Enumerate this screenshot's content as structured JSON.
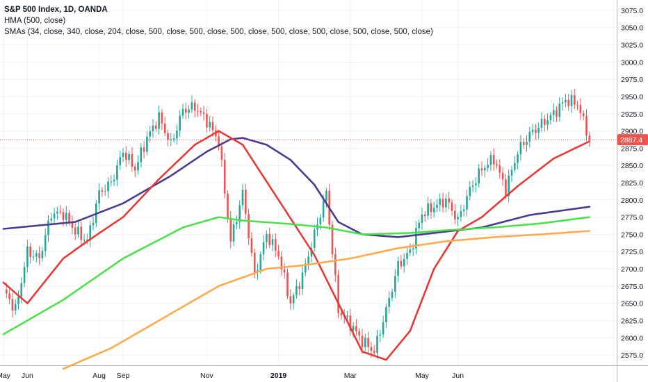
{
  "legend": {
    "title": "S&P 500 Index, 1D, OANDA",
    "line2": "HMA (500, close)",
    "line3": "SMAs (34, close, 340, close, 204, close, 500, close, 500, close, 500, close, 500, close, 500, close, 500, close, 500, close)"
  },
  "colors": {
    "up": "#26a69a",
    "down": "#ef5350",
    "hma": "#4a3b8f",
    "sma34": "#e53935",
    "sma204": "#4ce04a",
    "sma340": "#ffa94d",
    "price_line": "#ef5350",
    "price_tag": "#ef5350"
  },
  "chart_data": {
    "type": "candlestick",
    "x_ticks": [
      "May",
      "Jun",
      "Aug",
      "Sep",
      "Nov",
      "2019",
      "Mar",
      "May",
      "Jun"
    ],
    "x_tick_days": [
      0,
      2,
      8,
      10,
      17,
      23,
      29,
      35,
      38
    ],
    "y_ticks": [
      2575,
      2600,
      2625,
      2650,
      2675,
      2700,
      2725,
      2750,
      2775,
      2800,
      2825,
      2850,
      2875,
      2900,
      2925,
      2950,
      2975,
      3000,
      3025,
      3050,
      3075
    ],
    "y_tick_labels": [
      "2575.0",
      "2600.0",
      "2625.0",
      "2650.0",
      "2675.0",
      "2700.0",
      "2725.0",
      "2750.0",
      "2775.0",
      "2800.0",
      "2825.0",
      "2850.0",
      "2875.0",
      "2900.0",
      "2925.0",
      "2950.0",
      "2975.0",
      "3000.0",
      "3025.0",
      "3050.0",
      "3075.0"
    ],
    "ylim": [
      2560,
      3090
    ],
    "last_price": 2887.4,
    "last_price_label": "2887.4",
    "close_series": [
      [
        0,
        2670
      ],
      [
        1,
        2640
      ],
      [
        2,
        2725
      ],
      [
        3,
        2715
      ],
      [
        4,
        2780
      ],
      [
        5,
        2780
      ],
      [
        6,
        2755
      ],
      [
        7,
        2740
      ],
      [
        8,
        2810
      ],
      [
        9,
        2825
      ],
      [
        10,
        2870
      ],
      [
        11,
        2845
      ],
      [
        12,
        2890
      ],
      [
        13,
        2920
      ],
      [
        14,
        2880
      ],
      [
        15,
        2930
      ],
      [
        16,
        2935
      ],
      [
        17,
        2915
      ],
      [
        18,
        2885
      ],
      [
        19,
        2740
      ],
      [
        20,
        2810
      ],
      [
        21,
        2690
      ],
      [
        22,
        2750
      ],
      [
        23,
        2720
      ],
      [
        24,
        2650
      ],
      [
        25,
        2690
      ],
      [
        26,
        2750
      ],
      [
        27,
        2810
      ],
      [
        28,
        2640
      ],
      [
        29,
        2620
      ],
      [
        30,
        2595
      ],
      [
        31,
        2580
      ],
      [
        32,
        2640
      ],
      [
        33,
        2705
      ],
      [
        34,
        2725
      ],
      [
        35,
        2780
      ],
      [
        36,
        2790
      ],
      [
        37,
        2800
      ],
      [
        38,
        2770
      ],
      [
        39,
        2815
      ],
      [
        40,
        2845
      ],
      [
        41,
        2860
      ],
      [
        42,
        2815
      ],
      [
        43,
        2870
      ],
      [
        44,
        2895
      ],
      [
        45,
        2910
      ],
      [
        46,
        2925
      ],
      [
        47,
        2945
      ],
      [
        48,
        2940
      ],
      [
        49,
        2887.4
      ]
    ],
    "series": [
      {
        "name": "HMA (500, close)",
        "points": [
          [
            0,
            2758
          ],
          [
            6,
            2768
          ],
          [
            10,
            2795
          ],
          [
            14,
            2835
          ],
          [
            17,
            2870
          ],
          [
            19,
            2888
          ],
          [
            20,
            2890
          ],
          [
            22,
            2880
          ],
          [
            24,
            2858
          ],
          [
            26,
            2822
          ],
          [
            28,
            2768
          ],
          [
            30,
            2750
          ],
          [
            33,
            2746
          ],
          [
            36,
            2752
          ],
          [
            40,
            2760
          ],
          [
            44,
            2778
          ],
          [
            49,
            2790
          ]
        ]
      },
      {
        "name": "SMA 34",
        "points": [
          [
            0,
            2680
          ],
          [
            2,
            2650
          ],
          [
            5,
            2715
          ],
          [
            7,
            2740
          ],
          [
            10,
            2775
          ],
          [
            13,
            2830
          ],
          [
            16,
            2880
          ],
          [
            18,
            2900
          ],
          [
            20,
            2880
          ],
          [
            23,
            2800
          ],
          [
            26,
            2720
          ],
          [
            28,
            2650
          ],
          [
            30,
            2580
          ],
          [
            32,
            2568
          ],
          [
            34,
            2610
          ],
          [
            36,
            2700
          ],
          [
            38,
            2755
          ],
          [
            40,
            2775
          ],
          [
            43,
            2820
          ],
          [
            46,
            2860
          ],
          [
            49,
            2885
          ]
        ]
      },
      {
        "name": "SMA 204",
        "points": [
          [
            0,
            2605
          ],
          [
            5,
            2655
          ],
          [
            10,
            2715
          ],
          [
            15,
            2760
          ],
          [
            18,
            2775
          ],
          [
            20,
            2770
          ],
          [
            24,
            2765
          ],
          [
            27,
            2760
          ],
          [
            30,
            2750
          ],
          [
            34,
            2752
          ],
          [
            37,
            2756
          ],
          [
            41,
            2760
          ],
          [
            45,
            2766
          ],
          [
            49,
            2775
          ]
        ]
      },
      {
        "name": "SMA 340",
        "points": [
          [
            5,
            2555
          ],
          [
            9,
            2585
          ],
          [
            14,
            2635
          ],
          [
            18,
            2675
          ],
          [
            22,
            2700
          ],
          [
            25,
            2705
          ],
          [
            29,
            2715
          ],
          [
            33,
            2730
          ],
          [
            37,
            2740
          ],
          [
            41,
            2746
          ],
          [
            45,
            2750
          ],
          [
            49,
            2755
          ]
        ]
      }
    ]
  }
}
